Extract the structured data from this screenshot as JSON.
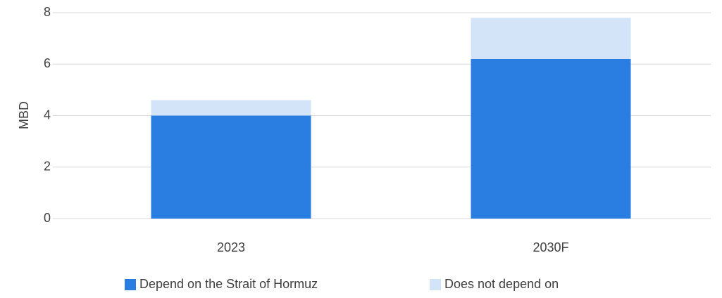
{
  "chart_data": {
    "type": "stacked_bar",
    "categories": [
      "2023",
      "2030F"
    ],
    "series": [
      {
        "name": "Depend on the Strait of Hormuz",
        "color": "#2a7de1",
        "values": [
          4.0,
          6.2
        ]
      },
      {
        "name": "Does not depend on",
        "color": "#d3e3f8",
        "values": [
          0.6,
          1.6
        ]
      }
    ],
    "ylabel": "MBD",
    "ylim": [
      0,
      8
    ],
    "yticks": [
      0,
      2,
      4,
      6,
      8
    ],
    "grid": true,
    "legend": "bottom"
  }
}
